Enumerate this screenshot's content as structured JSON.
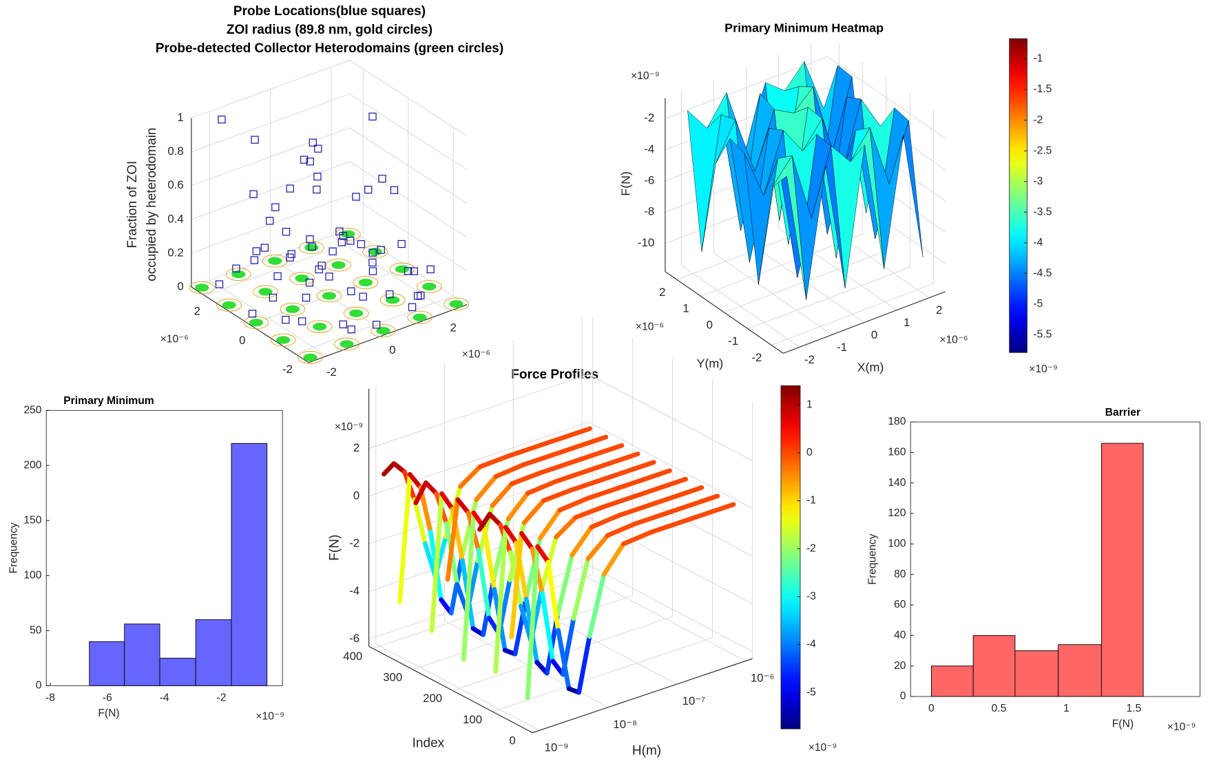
{
  "chart_data": [
    {
      "type": "scatter3d",
      "title": [
        "Probe Locations(blue squares)",
        "ZOI radius (89.8 nm, gold circles)",
        "Probe-detected Collector Heterodomains (green circles)"
      ],
      "zlabel": [
        "Fraction of ZOI",
        "occupied by heterodomain"
      ],
      "x_exponent": "×10⁻⁶",
      "y_exponent": "×10⁻⁶",
      "xlim": [
        -2.6,
        2.6
      ],
      "ylim": [
        -2.6,
        2.6
      ],
      "zlim": [
        0,
        1
      ],
      "xticks": [
        -2,
        0,
        2
      ],
      "yticks": [
        -2,
        0,
        2
      ],
      "zticks": [
        0,
        0.2,
        0.4,
        0.6,
        0.8,
        1
      ],
      "grid": true,
      "point_color": "#1a1aa6",
      "heterodomain_color": "#33dd33",
      "zoi_color": "#d4a017",
      "points": {
        "x": [
          -2.2,
          -1.8,
          -1.5,
          -1.1,
          -0.8,
          -0.4,
          0,
          0.3,
          0.7,
          1.1,
          1.5,
          1.9,
          2.2,
          -2,
          -1.4,
          -0.9,
          -0.2,
          0.5,
          1.0,
          1.6,
          2.1,
          -1.7,
          -1.2,
          -0.6,
          0.1,
          0.8,
          1.3,
          1.8,
          -2.1,
          -1.3,
          -0.5,
          0.2,
          0.9,
          1.7,
          -1.6,
          -1.0,
          -0.3,
          0.4,
          1.2,
          2.0,
          -1.9,
          -0.7,
          0.6,
          1.4,
          -1.1,
          0,
          1.0,
          -0.4,
          0.7,
          -1.5,
          1.8,
          -0.2,
          0.3,
          -2.3,
          2.3,
          -0.9,
          1.1,
          0.5,
          -1.2,
          1.6
        ],
        "y": [
          1.9,
          -0.5,
          2.1,
          0.8,
          -1.7,
          1.2,
          -2.1,
          0.4,
          1.7,
          -1.2,
          0.1,
          2.0,
          -0.8,
          -1.5,
          0.6,
          -2.2,
          1.4,
          -0.3,
          2.2,
          -1.9,
          0.9,
          1.0,
          -1.1,
          0.3,
          -1.6,
          1.8,
          -0.6,
          0.5,
          -0.2,
          1.6,
          -1.3,
          2.0,
          -2.0,
          1.1,
          0.7,
          -0.9,
          1.5,
          -1.4,
          0.2,
          -1.8,
          2.2,
          -0.1,
          1.3,
          -1.0,
          0.9,
          -2.3,
          1.9,
          -0.7,
          0.0,
          1.2,
          -1.5,
          0.6,
          -1.1,
          0.3,
          -0.4,
          2.1,
          -2.2,
          1.0,
          -0.6,
          1.7
        ],
        "z": [
          0.05,
          0.02,
          0.08,
          0.12,
          0.03,
          0.15,
          0.01,
          0.06,
          0.1,
          0.04,
          0.09,
          0.02,
          0.07,
          0.11,
          0.03,
          0.05,
          0.14,
          0.02,
          0.08,
          0.06,
          0.04,
          0.95,
          0.88,
          0.82,
          0.76,
          0.7,
          0.66,
          0.9,
          0.6,
          0.55,
          0.5,
          0.45,
          0.42,
          0.38,
          0.33,
          0.3,
          0.27,
          0.24,
          0.21,
          0.18,
          0.98,
          0.85,
          0.72,
          0.62,
          0.52,
          0.47,
          0.4,
          0.35,
          0.28,
          0.26,
          0.01,
          0.04,
          0.07,
          0.02,
          0.03,
          0.09,
          0.05,
          0.06,
          0.12,
          0.13
        ]
      },
      "heterodomains": {
        "x": [
          -2.4,
          -1.2,
          0,
          1.2,
          2.4,
          -2.4,
          -1.2,
          0,
          1.2,
          2.4,
          -2.4,
          -1.2,
          0,
          1.2,
          2.4,
          -2.4,
          -1.2,
          0,
          1.2,
          2.4,
          -2.4,
          -1.2,
          0,
          1.2,
          2.4
        ],
        "y": [
          -2.4,
          -2.4,
          -2.4,
          -2.4,
          -2.4,
          -1.2,
          -1.2,
          -1.2,
          -1.2,
          -1.2,
          0,
          0,
          0,
          0,
          0,
          1.2,
          1.2,
          1.2,
          1.2,
          1.2,
          2.4,
          2.4,
          2.4,
          2.4,
          2.4
        ]
      }
    },
    {
      "type": "surface",
      "title": "Primary Minimum Heatmap",
      "xlabel": "X(m)",
      "ylabel": "Y(m)",
      "zlabel": "F(N)",
      "x_exponent": "×10⁻⁶",
      "y_exponent": "×10⁻⁶",
      "z_exponent": "×10⁻⁹",
      "c_exponent": "×10⁻⁹",
      "xlim": [
        -2.5,
        2.5
      ],
      "ylim": [
        -2.5,
        2.5
      ],
      "zlim": [
        -11.8,
        -0.7
      ],
      "xticks": [
        -2,
        -1,
        0,
        1,
        2
      ],
      "yticks": [
        -2,
        -1,
        0,
        1,
        2
      ],
      "zticks": [
        -10,
        -8,
        -6,
        -4,
        -2
      ],
      "clim": [
        -5.79,
        -0.67
      ],
      "cticks": [
        -1,
        -1.5,
        -2,
        -2.5,
        -3,
        -3.5,
        -4,
        -4.5,
        -5,
        -5.5
      ],
      "colormap": "jet",
      "grid": true,
      "x": [
        -2.1,
        -1.5,
        -0.9,
        -0.3,
        0.3,
        0.9,
        1.5,
        2.1
      ],
      "y": [
        -2.1,
        -1.5,
        -0.9,
        -0.3,
        0.3,
        0.9,
        1.5,
        2.1
      ],
      "z": [
        [
          -1.2,
          -9.6,
          -1.5,
          -9.8,
          -1.1,
          -9.5,
          -1.4,
          -9.7
        ],
        [
          -2.5,
          -1.0,
          -5.5,
          -1.3,
          -2.8,
          -1.1,
          -5.2,
          -1.6
        ],
        [
          -9.4,
          -1.8,
          -9.9,
          -1.2,
          -9.6,
          -1.9,
          -9.3,
          -1.4
        ],
        [
          -1.6,
          -4.8,
          -1.1,
          -2.9,
          -1.3,
          -5.4,
          -1.0,
          -3.2
        ],
        [
          -1.3,
          -9.7,
          -1.6,
          -9.5,
          -1.2,
          -9.8,
          -1.5,
          -9.4
        ],
        [
          -3.5,
          -1.2,
          -5.0,
          -1.5,
          -2.2,
          -1.0,
          -5.6,
          -1.3
        ],
        [
          -9.8,
          -1.5,
          -9.4,
          -1.1,
          -9.7,
          -1.6,
          -9.5,
          -1.2
        ],
        [
          -1.4,
          -3.0,
          -1.2,
          -5.3,
          -1.5,
          -2.5,
          -1.1,
          -4.6
        ]
      ]
    },
    {
      "type": "histogram",
      "title": "Primary Minimum",
      "xlabel": "F(N)",
      "ylabel": "Frequency",
      "x_exponent": "×10⁻⁹",
      "bins": [
        -6.63,
        -5.4,
        -4.16,
        -2.9,
        -1.65,
        -0.4
      ],
      "values": [
        40,
        56,
        25,
        60,
        220
      ],
      "color": "#6666ff",
      "xlim": [
        -8.14,
        0.14
      ],
      "ylim": [
        0,
        250
      ],
      "xticks": [
        -8,
        -6,
        -4,
        -2
      ],
      "yticks": [
        0,
        50,
        100,
        150,
        200,
        250
      ]
    },
    {
      "type": "line3d",
      "title": "Force Profiles",
      "xlabel": "H(m)",
      "ylabel": "Index",
      "zlabel": "F(N)",
      "z_exponent": "×10⁻⁹",
      "c_exponent": "×10⁻⁹",
      "xscale": "log",
      "xlim": [
        7.9e-10,
        1.26e-06
      ],
      "ylim": [
        0,
        410
      ],
      "zlim": [
        -6.3,
        4.5
      ],
      "xticks": [
        {
          "value": 1e-09,
          "label": "10⁻⁹"
        },
        {
          "value": 1e-08,
          "label": "10⁻⁸"
        },
        {
          "value": 1e-07,
          "label": "10⁻⁷"
        },
        {
          "value": 1e-06,
          "label": "10⁻⁶"
        }
      ],
      "yticks": [
        0,
        100,
        200,
        300,
        400
      ],
      "zticks": [
        -6,
        -4,
        -2,
        0,
        2
      ],
      "clim": [
        -5.76,
        1.4
      ],
      "cticks": [
        1,
        0,
        -1,
        -2,
        -3,
        -4,
        -5
      ],
      "colormap": "jet",
      "grid": true,
      "H": [
        1e-09,
        1.4e-09,
        2e-09,
        2.8e-09,
        4e-09,
        5.6e-09,
        8e-09,
        1.3e-08,
        2.5e-08,
        6.3e-08,
        2.5e-07,
        1e-06
      ],
      "curves": [
        {
          "index": 390,
          "values": [
            1.0,
            1.3,
            0.8,
            -0.5,
            -2.5,
            -4.0,
            -2.5,
            -0.6,
            -0.05,
            0,
            0,
            0
          ]
        },
        {
          "index": 350,
          "values": [
            -4.0,
            1.2,
            0.5,
            -1.5,
            -4.5,
            -5.2,
            -3.0,
            -0.8,
            -0.1,
            0,
            0,
            0
          ]
        },
        {
          "index": 310,
          "values": [
            0.5,
            1.2,
            0.6,
            -0.8,
            -3.5,
            -4.8,
            -2.8,
            -0.7,
            -0.05,
            0,
            0,
            0
          ]
        },
        {
          "index": 270,
          "values": [
            -4.5,
            1.1,
            0.3,
            -2.0,
            -5.0,
            -5.4,
            -3.2,
            -0.9,
            -0.1,
            0,
            0,
            0
          ]
        },
        {
          "index": 230,
          "values": [
            -2.0,
            1.2,
            0.5,
            -1.2,
            -4.2,
            -5.0,
            -2.9,
            -0.7,
            -0.05,
            0,
            0,
            0
          ]
        },
        {
          "index": 190,
          "values": [
            -5.0,
            1.0,
            0.2,
            -2.5,
            -5.2,
            -5.5,
            -3.4,
            -1.0,
            -0.1,
            0,
            0,
            0
          ]
        },
        {
          "index": 150,
          "values": [
            0.8,
            1.3,
            0.7,
            -0.6,
            -3.0,
            -4.6,
            -2.6,
            -0.6,
            -0.05,
            0,
            0,
            0
          ]
        },
        {
          "index": 110,
          "values": [
            -4.8,
            1.1,
            0.3,
            -2.2,
            -5.0,
            -5.6,
            -3.3,
            -1.0,
            -0.1,
            0,
            0,
            0
          ]
        },
        {
          "index": 70,
          "values": [
            -3.0,
            1.2,
            0.4,
            -1.6,
            -4.6,
            -5.3,
            -3.1,
            -0.8,
            -0.1,
            0,
            0,
            0
          ]
        },
        {
          "index": 30,
          "values": [
            -5.2,
            1.0,
            0.2,
            -2.8,
            -5.4,
            -5.7,
            -3.5,
            -1.1,
            -0.1,
            0,
            0,
            0
          ]
        }
      ]
    },
    {
      "type": "histogram",
      "title": "Barrier",
      "xlabel": "F(N)",
      "ylabel": "Frequency",
      "x_exponent": "×10⁻⁹",
      "bins": [
        0,
        0.31,
        0.62,
        0.94,
        1.26,
        1.57
      ],
      "values": [
        20,
        40,
        30,
        34,
        166
      ],
      "color": "#ff6666",
      "xlim": [
        -0.154,
        1.99
      ],
      "ylim": [
        0,
        180
      ],
      "xticks": [
        0,
        0.5,
        1,
        1.5
      ],
      "yticks": [
        0,
        20,
        40,
        60,
        80,
        100,
        120,
        140,
        160,
        180
      ]
    }
  ]
}
